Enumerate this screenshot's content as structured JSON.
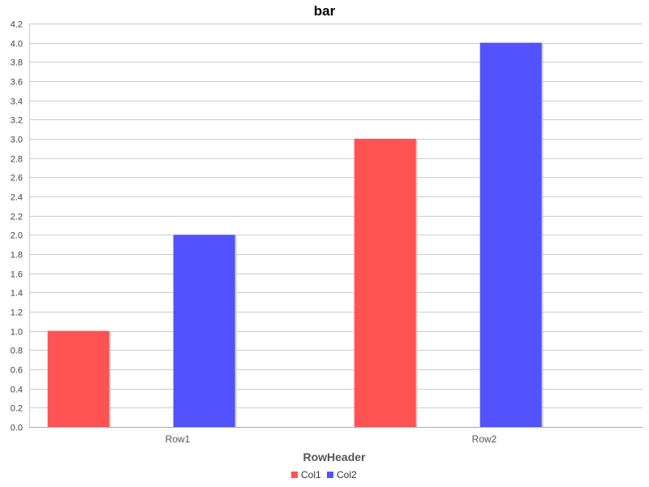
{
  "chart_data": {
    "type": "bar",
    "title": "bar",
    "xlabel": "RowHeader",
    "ylabel": "",
    "categories": [
      "Row1",
      "Row2"
    ],
    "series": [
      {
        "name": "Col1",
        "values": [
          1.0,
          3.0
        ],
        "color": "#ff5252"
      },
      {
        "name": "Col2",
        "values": [
          2.0,
          4.0
        ],
        "color": "#5252ff"
      }
    ],
    "ylim": [
      0,
      4.2
    ],
    "ytick_step": 0.2,
    "grid": true,
    "legend_position": "bottom-center"
  }
}
